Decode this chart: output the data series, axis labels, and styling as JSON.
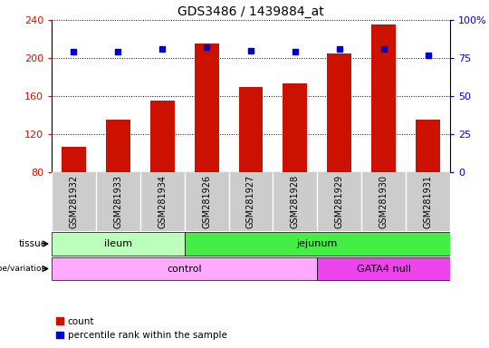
{
  "title": "GDS3486 / 1439884_at",
  "samples": [
    "GSM281932",
    "GSM281933",
    "GSM281934",
    "GSM281926",
    "GSM281927",
    "GSM281928",
    "GSM281929",
    "GSM281930",
    "GSM281931"
  ],
  "counts": [
    107,
    135,
    155,
    215,
    170,
    173,
    205,
    235,
    135
  ],
  "percentile_ranks": [
    79,
    79,
    81,
    82,
    80,
    79,
    81,
    81,
    77
  ],
  "ylim_left": [
    80,
    240
  ],
  "ylim_right": [
    0,
    100
  ],
  "yticks_left": [
    80,
    120,
    160,
    200,
    240
  ],
  "yticks_right": [
    0,
    25,
    50,
    75,
    100
  ],
  "bar_color": "#cc1100",
  "dot_color": "#0000cc",
  "tissue_groups": [
    {
      "label": "ileum",
      "start": 0,
      "end": 3,
      "color": "#bbffbb"
    },
    {
      "label": "jejunum",
      "start": 3,
      "end": 9,
      "color": "#44ee44"
    }
  ],
  "genotype_groups": [
    {
      "label": "control",
      "start": 0,
      "end": 6,
      "color": "#ffaaff"
    },
    {
      "label": "GATA4 null",
      "start": 6,
      "end": 9,
      "color": "#ee44ee"
    }
  ],
  "tissue_label": "tissue",
  "genotype_label": "genotype/variation",
  "legend_count": "count",
  "legend_percentile": "percentile rank within the sample",
  "background_color": "#ffffff",
  "tick_label_color_left": "#cc1100",
  "tick_label_color_right": "#0000cc",
  "sample_box_color": "#cccccc",
  "grid_linestyle": ":",
  "grid_color": "#000000",
  "grid_linewidth": 0.7
}
